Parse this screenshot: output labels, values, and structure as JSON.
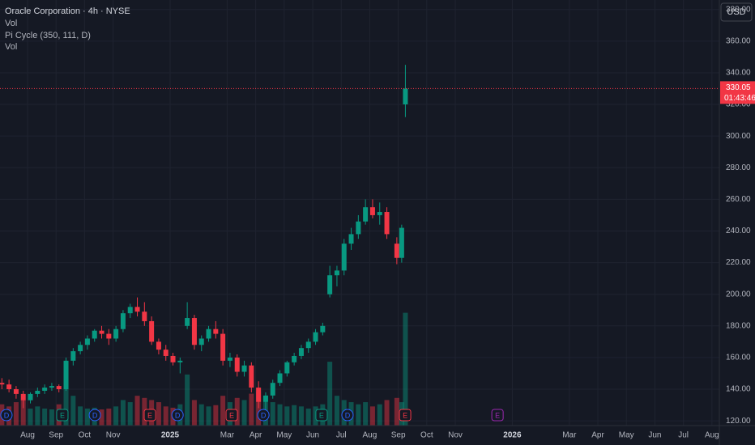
{
  "chart_data": {
    "type": "candlestick",
    "title": "Oracle Corporation · 4h · NYSE",
    "indicators": [
      "Vol",
      "Pi Cycle (350, 111, D)",
      "Vol"
    ],
    "currency": "USD",
    "last_price": 330.05,
    "countdown": "01:43:46",
    "up_color": "#089981",
    "down_color": "#f23645",
    "x": [
      -0.9,
      -0.65,
      -0.4,
      -0.15,
      0.1,
      0.35,
      0.6,
      0.85,
      1.1,
      1.35,
      1.6,
      1.85,
      2.1,
      2.35,
      2.6,
      2.85,
      3.1,
      3.35,
      3.6,
      3.85,
      4.1,
      4.35,
      4.6,
      4.85,
      5.1,
      5.35,
      5.6,
      5.85,
      6.1,
      6.35,
      6.6,
      6.85,
      7.1,
      7.35,
      7.6,
      7.85,
      8.1,
      8.35,
      8.6,
      8.85,
      9.1,
      9.35,
      9.6,
      9.85,
      10.1,
      10.35,
      10.6,
      10.85,
      11.1,
      11.35,
      11.6,
      11.85,
      12.1,
      12.35,
      12.6,
      12.95,
      13.12,
      13.25
    ],
    "open": [
      144,
      143,
      140,
      137,
      133,
      137,
      139,
      141,
      142,
      140,
      158,
      164,
      168,
      172,
      177,
      175,
      172,
      178,
      188,
      192,
      189,
      183,
      170,
      165,
      161,
      157,
      180,
      185,
      168,
      172,
      178,
      175,
      158,
      160,
      151,
      155,
      141,
      132,
      136,
      144,
      150,
      157,
      161,
      166,
      170,
      176,
      200,
      212,
      215,
      232,
      238,
      246,
      255,
      250,
      252,
      232,
      223,
      320
    ],
    "high": [
      147,
      146,
      142,
      139,
      138,
      141,
      143,
      144,
      143,
      160,
      166,
      170,
      174,
      178,
      180,
      178,
      180,
      190,
      194,
      198,
      195,
      186,
      172,
      168,
      163,
      160,
      195,
      187,
      174,
      180,
      183,
      178,
      163,
      162,
      158,
      157,
      145,
      138,
      146,
      152,
      158,
      163,
      168,
      172,
      178,
      182,
      218,
      218,
      235,
      242,
      250,
      260,
      260,
      258,
      255,
      236,
      244,
      345
    ],
    "low": [
      140,
      138,
      134,
      128,
      131,
      135,
      137,
      139,
      138,
      139,
      155,
      162,
      165,
      170,
      172,
      168,
      170,
      176,
      185,
      186,
      180,
      168,
      162,
      158,
      155,
      150,
      178,
      165,
      164,
      170,
      172,
      155,
      154,
      148,
      148,
      138,
      128,
      126,
      134,
      142,
      148,
      155,
      159,
      163,
      168,
      174,
      198,
      205,
      212,
      228,
      235,
      244,
      248,
      244,
      235,
      219,
      220,
      312
    ],
    "close": [
      143,
      140,
      137,
      133,
      137,
      139,
      141,
      142,
      140,
      158,
      164,
      168,
      172,
      177,
      175,
      172,
      178,
      188,
      192,
      189,
      183,
      170,
      165,
      161,
      157,
      158,
      185,
      168,
      172,
      178,
      175,
      158,
      160,
      151,
      155,
      141,
      132,
      136,
      144,
      150,
      157,
      161,
      166,
      170,
      176,
      180,
      212,
      215,
      232,
      238,
      246,
      255,
      250,
      252,
      238,
      223,
      242,
      330
    ],
    "volume": [
      50,
      45,
      55,
      60,
      40,
      45,
      40,
      38,
      50,
      150,
      70,
      45,
      40,
      42,
      38,
      40,
      45,
      60,
      55,
      70,
      65,
      60,
      55,
      45,
      42,
      50,
      120,
      60,
      50,
      45,
      48,
      70,
      55,
      65,
      60,
      75,
      80,
      70,
      55,
      50,
      45,
      48,
      45,
      40,
      45,
      50,
      150,
      70,
      60,
      55,
      50,
      55,
      45,
      50,
      60,
      65,
      55,
      265
    ],
    "volume_lim": [
      0,
      1000
    ],
    "xlim": [
      -0.966,
      24.26
    ],
    "ylim": [
      117,
      386
    ],
    "yticks": [
      {
        "value": 120,
        "label": "120.00"
      },
      {
        "value": 140,
        "label": "140.00"
      },
      {
        "value": 160,
        "label": "160.00"
      },
      {
        "value": 180,
        "label": "180.00"
      },
      {
        "value": 200,
        "label": "200.00"
      },
      {
        "value": 220,
        "label": "220.00"
      },
      {
        "value": 240,
        "label": "240.00"
      },
      {
        "value": 260,
        "label": "260.00"
      },
      {
        "value": 280,
        "label": "280.00"
      },
      {
        "value": 300,
        "label": "300.00"
      },
      {
        "value": 320,
        "label": "320.00"
      },
      {
        "value": 340,
        "label": "340.00"
      },
      {
        "value": 360,
        "label": "360.00"
      },
      {
        "value": 380,
        "label": "380.00"
      }
    ],
    "xticks": [
      {
        "value": 0,
        "label": "Aug"
      },
      {
        "value": 1,
        "label": "Sep"
      },
      {
        "value": 2,
        "label": "Oct"
      },
      {
        "value": 3,
        "label": "Nov"
      },
      {
        "value": 5,
        "label": "2025"
      },
      {
        "value": 7,
        "label": "Mar"
      },
      {
        "value": 8,
        "label": "Apr"
      },
      {
        "value": 9,
        "label": "May"
      },
      {
        "value": 10,
        "label": "Jun"
      },
      {
        "value": 11,
        "label": "Jul"
      },
      {
        "value": 12,
        "label": "Aug"
      },
      {
        "value": 13,
        "label": "Sep"
      },
      {
        "value": 14,
        "label": "Oct"
      },
      {
        "value": 15,
        "label": "Nov"
      },
      {
        "value": 17,
        "label": "2026"
      },
      {
        "value": 19,
        "label": "Mar"
      },
      {
        "value": 20,
        "label": "Apr"
      },
      {
        "value": 21,
        "label": "May"
      },
      {
        "value": 22,
        "label": "Jun"
      },
      {
        "value": 23,
        "label": "Jul"
      },
      {
        "value": 24,
        "label": "Aug"
      }
    ],
    "events": [
      {
        "x": -0.74,
        "label": "D",
        "color": "#2962ff"
      },
      {
        "x": 1.22,
        "label": "E",
        "color": "#089981"
      },
      {
        "x": 2.36,
        "label": "D",
        "color": "#2962ff"
      },
      {
        "x": 4.29,
        "label": "E",
        "color": "#f23645"
      },
      {
        "x": 5.26,
        "label": "D",
        "color": "#2962ff"
      },
      {
        "x": 7.16,
        "label": "E",
        "color": "#f23645"
      },
      {
        "x": 8.27,
        "label": "D",
        "color": "#2962ff"
      },
      {
        "x": 10.31,
        "label": "E",
        "color": "#089981"
      },
      {
        "x": 11.22,
        "label": "D",
        "color": "#2962ff"
      },
      {
        "x": 13.24,
        "label": "E",
        "color": "#f23645"
      },
      {
        "x": 16.48,
        "label": "E",
        "color": "#9c27b0"
      }
    ]
  }
}
